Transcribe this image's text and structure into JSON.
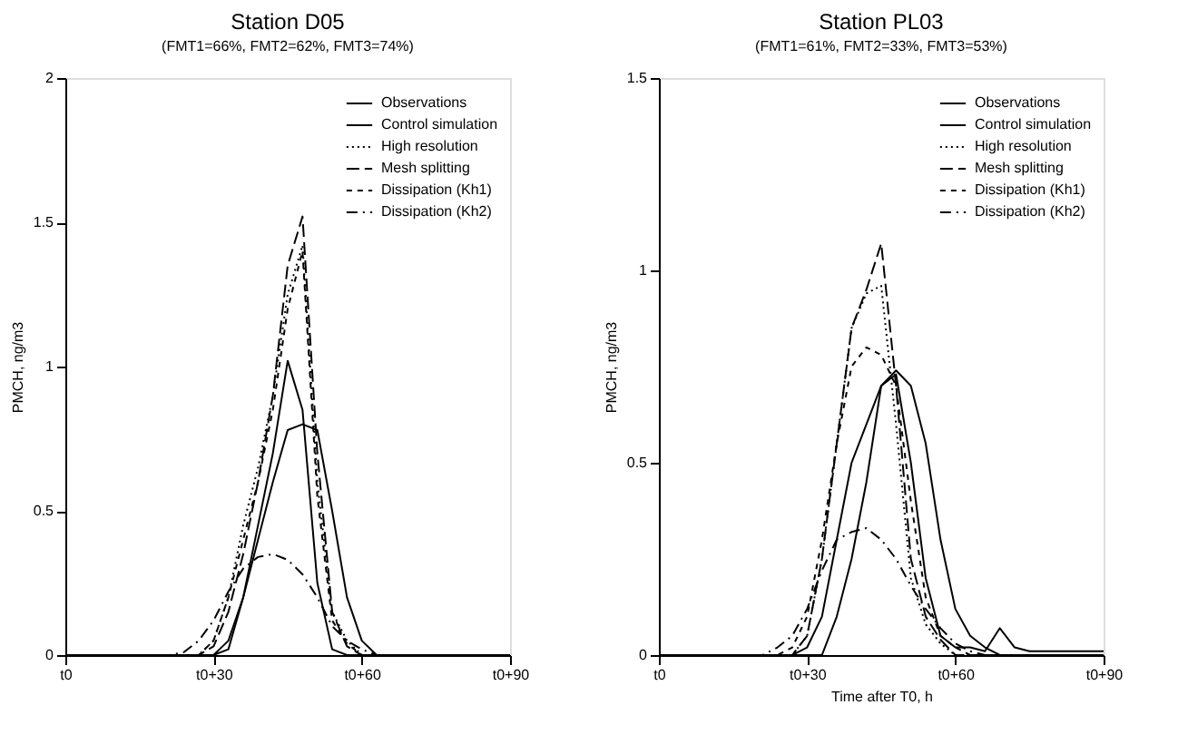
{
  "chart_data": [
    {
      "type": "line",
      "title": "Station D05",
      "subtitle": "(FMT1=66%, FMT2=62%, FMT3=74%)",
      "ylabel": "PMCH, ng/m3",
      "categories": [
        "t0",
        null,
        null,
        null,
        null,
        null,
        null,
        null,
        null,
        null,
        "t0+30",
        null,
        null,
        null,
        null,
        null,
        null,
        null,
        null,
        null,
        "t0+60",
        null,
        null,
        null,
        null,
        null,
        null,
        null,
        null,
        null,
        "t0+90"
      ],
      "ylim": [
        0,
        2
      ],
      "yticks": [
        0,
        0.5,
        1,
        1.5,
        2
      ],
      "grid": false,
      "legend": "top right",
      "series": [
        {
          "name": "Observations",
          "color": "#000000",
          "line_style": "solid",
          "values": [
            0,
            0,
            0,
            0,
            0,
            0,
            0,
            0,
            0,
            0,
            0,
            0.02,
            0.2,
            0.45,
            0.7,
            1.02,
            0.85,
            0.25,
            0.02,
            0,
            0,
            0,
            0,
            0,
            0,
            0,
            0,
            0,
            0,
            0,
            0
          ]
        },
        {
          "name": "Control simulation",
          "color": "#000000",
          "line_style": "solid",
          "values": [
            0,
            0,
            0,
            0,
            0,
            0,
            0,
            0,
            0,
            0,
            0,
            0.05,
            0.2,
            0.4,
            0.6,
            0.78,
            0.8,
            0.78,
            0.5,
            0.2,
            0.05,
            0,
            0,
            0,
            0,
            0,
            0,
            0,
            0,
            0,
            0
          ]
        },
        {
          "name": "High resolution",
          "color": "#000000",
          "line_style": "dotted",
          "values": [
            0,
            0,
            0,
            0,
            0,
            0,
            0,
            0,
            0,
            0,
            0.05,
            0.2,
            0.45,
            0.65,
            0.9,
            1.25,
            1.42,
            0.6,
            0.15,
            0.05,
            0,
            0,
            0,
            0,
            0,
            0,
            0,
            0,
            0,
            0,
            0
          ]
        },
        {
          "name": "Mesh splitting",
          "color": "#000000",
          "line_style": "longdash",
          "values": [
            0,
            0,
            0,
            0,
            0,
            0,
            0,
            0,
            0,
            0,
            0.03,
            0.15,
            0.35,
            0.6,
            0.9,
            1.35,
            1.52,
            0.7,
            0.15,
            0.03,
            0,
            0,
            0,
            0,
            0,
            0,
            0,
            0,
            0,
            0,
            0
          ]
        },
        {
          "name": "Dissipation (Kh1)",
          "color": "#000000",
          "line_style": "dashed",
          "values": [
            0,
            0,
            0,
            0,
            0,
            0,
            0,
            0,
            0,
            0,
            0.05,
            0.2,
            0.4,
            0.6,
            0.85,
            1.2,
            1.4,
            0.55,
            0.12,
            0.04,
            0,
            0,
            0,
            0,
            0,
            0,
            0,
            0,
            0,
            0,
            0
          ]
        },
        {
          "name": "Dissipation (Kh2)",
          "color": "#000000",
          "line_style": "dashdot",
          "values": [
            0,
            0,
            0,
            0,
            0,
            0,
            0,
            0,
            0.01,
            0.05,
            0.12,
            0.22,
            0.3,
            0.34,
            0.35,
            0.33,
            0.28,
            0.2,
            0.1,
            0.05,
            0.02,
            0,
            0,
            0,
            0,
            0,
            0,
            0,
            0,
            0,
            0
          ]
        }
      ]
    },
    {
      "type": "line",
      "title": "Station PL03",
      "subtitle": "(FMT1=61%, FMT2=33%, FMT3=53%)",
      "xlabel": "Time after T0, h",
      "ylabel": "PMCH, ng/m3",
      "categories": [
        "t0",
        null,
        null,
        null,
        null,
        null,
        null,
        null,
        null,
        null,
        "t0+30",
        null,
        null,
        null,
        null,
        null,
        null,
        null,
        null,
        null,
        "t0+60",
        null,
        null,
        null,
        null,
        null,
        null,
        null,
        null,
        null,
        "t0+90"
      ],
      "ylim": [
        0,
        1.5
      ],
      "yticks": [
        0,
        0.5,
        1,
        1.5
      ],
      "grid": false,
      "legend": "top right",
      "series": [
        {
          "name": "Observations",
          "color": "#000000",
          "line_style": "solid",
          "values": [
            0,
            0,
            0,
            0,
            0,
            0,
            0,
            0,
            0,
            0,
            0,
            0,
            0.1,
            0.25,
            0.45,
            0.7,
            0.73,
            0.5,
            0.2,
            0.05,
            0.02,
            0.02,
            0.01,
            0.07,
            0.02,
            0.01,
            0.01,
            0.01,
            0.01,
            0.01,
            0.01
          ]
        },
        {
          "name": "Control simulation",
          "color": "#000000",
          "line_style": "solid",
          "values": [
            0,
            0,
            0,
            0,
            0,
            0,
            0,
            0,
            0,
            0,
            0.02,
            0.1,
            0.3,
            0.5,
            0.6,
            0.7,
            0.74,
            0.7,
            0.55,
            0.3,
            0.12,
            0.05,
            0.02,
            0,
            0,
            0,
            0,
            0,
            0,
            0,
            0
          ]
        },
        {
          "name": "High resolution",
          "color": "#000000",
          "line_style": "dotted",
          "values": [
            0,
            0,
            0,
            0,
            0,
            0,
            0,
            0,
            0,
            0,
            0.05,
            0.25,
            0.55,
            0.85,
            0.94,
            0.96,
            0.6,
            0.2,
            0.08,
            0.03,
            0,
            0,
            0,
            0,
            0,
            0,
            0,
            0,
            0,
            0,
            0
          ]
        },
        {
          "name": "Mesh splitting",
          "color": "#000000",
          "line_style": "longdash",
          "values": [
            0,
            0,
            0,
            0,
            0,
            0,
            0,
            0,
            0,
            0,
            0.05,
            0.25,
            0.55,
            0.85,
            0.95,
            1.07,
            0.7,
            0.25,
            0.1,
            0.04,
            0,
            0,
            0,
            0,
            0,
            0,
            0,
            0,
            0,
            0,
            0
          ]
        },
        {
          "name": "Dissipation (Kh1)",
          "color": "#000000",
          "line_style": "dashed",
          "values": [
            0,
            0,
            0,
            0,
            0,
            0,
            0,
            0,
            0,
            0.02,
            0.1,
            0.3,
            0.55,
            0.75,
            0.8,
            0.78,
            0.7,
            0.4,
            0.15,
            0.05,
            0.02,
            0,
            0,
            0,
            0,
            0,
            0,
            0,
            0,
            0,
            0
          ]
        },
        {
          "name": "Dissipation (Kh2)",
          "color": "#000000",
          "line_style": "dashdot",
          "values": [
            0,
            0,
            0,
            0,
            0,
            0,
            0,
            0,
            0.02,
            0.05,
            0.12,
            0.22,
            0.3,
            0.32,
            0.33,
            0.3,
            0.25,
            0.18,
            0.12,
            0.07,
            0.03,
            0.01,
            0,
            0,
            0,
            0,
            0,
            0,
            0,
            0,
            0
          ]
        }
      ]
    }
  ]
}
